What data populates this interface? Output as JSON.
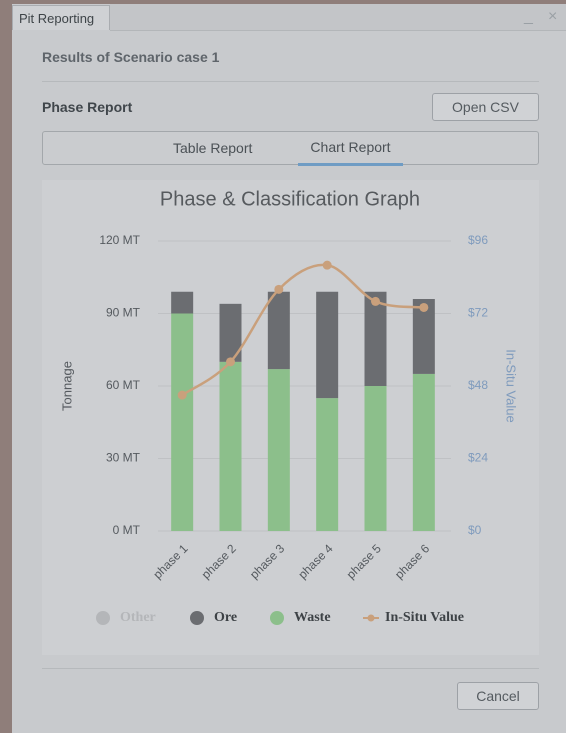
{
  "window": {
    "title": "Pit Reporting"
  },
  "header": {
    "subtitle": "Results of Scenario case 1",
    "section": "Phase Report",
    "open_csv": "Open CSV"
  },
  "tabs": [
    "Table Report",
    "Chart Report"
  ],
  "footer": {
    "cancel": "Cancel"
  },
  "chart_data": {
    "type": "bar",
    "stacked": true,
    "title": "Phase & Classification Graph",
    "y_label": "Tonnage",
    "y2_label": "In-Situ Value",
    "categories": [
      "phase 1",
      "phase 2",
      "phase 3",
      "phase 4",
      "phase 5",
      "phase 6"
    ],
    "series": [
      {
        "name": "Other",
        "color": "#b4b6b9",
        "visible": false,
        "values": [
          null,
          null,
          null,
          null,
          null,
          null
        ]
      },
      {
        "name": "Ore",
        "color": "#6b6d71",
        "values": [
          9,
          24,
          32,
          44,
          39,
          31
        ]
      },
      {
        "name": "Waste",
        "color": "#8cbf8b",
        "values": [
          90,
          70,
          67,
          55,
          60,
          65
        ]
      },
      {
        "name": "In-Situ Value",
        "color": "#c9a07c",
        "type": "line",
        "axis": "y2",
        "values": [
          45,
          56,
          80,
          88,
          76,
          74
        ]
      }
    ],
    "ylim": [
      0,
      120
    ],
    "yticks": [
      {
        "value": 0,
        "label": "0 MT"
      },
      {
        "value": 30,
        "label": "30 MT"
      },
      {
        "value": 60,
        "label": "60 MT"
      },
      {
        "value": 90,
        "label": "90 MT"
      },
      {
        "value": 120,
        "label": "120 MT"
      }
    ],
    "y2lim": [
      0,
      96
    ],
    "y2ticks": [
      {
        "value": 0,
        "label": "$0"
      },
      {
        "value": 24,
        "label": "$24"
      },
      {
        "value": 48,
        "label": "$48"
      },
      {
        "value": 72,
        "label": "$72"
      },
      {
        "value": 96,
        "label": "$96"
      }
    ],
    "grid": true
  }
}
